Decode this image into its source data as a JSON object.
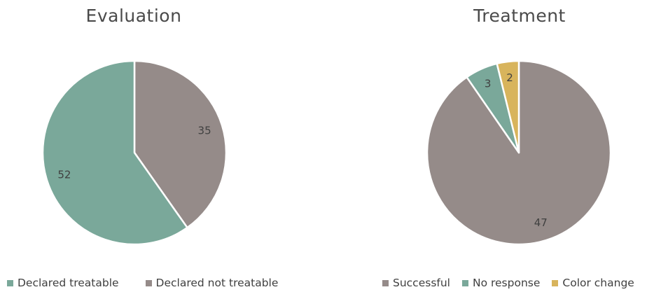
{
  "chart_data": [
    {
      "type": "pie",
      "title": "Evaluation",
      "slices": [
        {
          "label": "Declared not treatable",
          "value": 35,
          "color": "#958b89"
        },
        {
          "label": "Declared treatable",
          "value": 52,
          "color": "#7aa89a"
        }
      ],
      "legend": [
        "Declared treatable",
        "Declared not treatable"
      ],
      "legend_position": "bottom"
    },
    {
      "type": "pie",
      "title": "Treatment",
      "slices": [
        {
          "label": "Successful",
          "value": 47,
          "color": "#958b89"
        },
        {
          "label": "No response",
          "value": 3,
          "color": "#7aa89a"
        },
        {
          "label": "Color change",
          "value": 2,
          "color": "#d8b45c"
        }
      ],
      "legend": [
        "Successful",
        "No response",
        "Color change"
      ],
      "legend_position": "bottom"
    }
  ]
}
